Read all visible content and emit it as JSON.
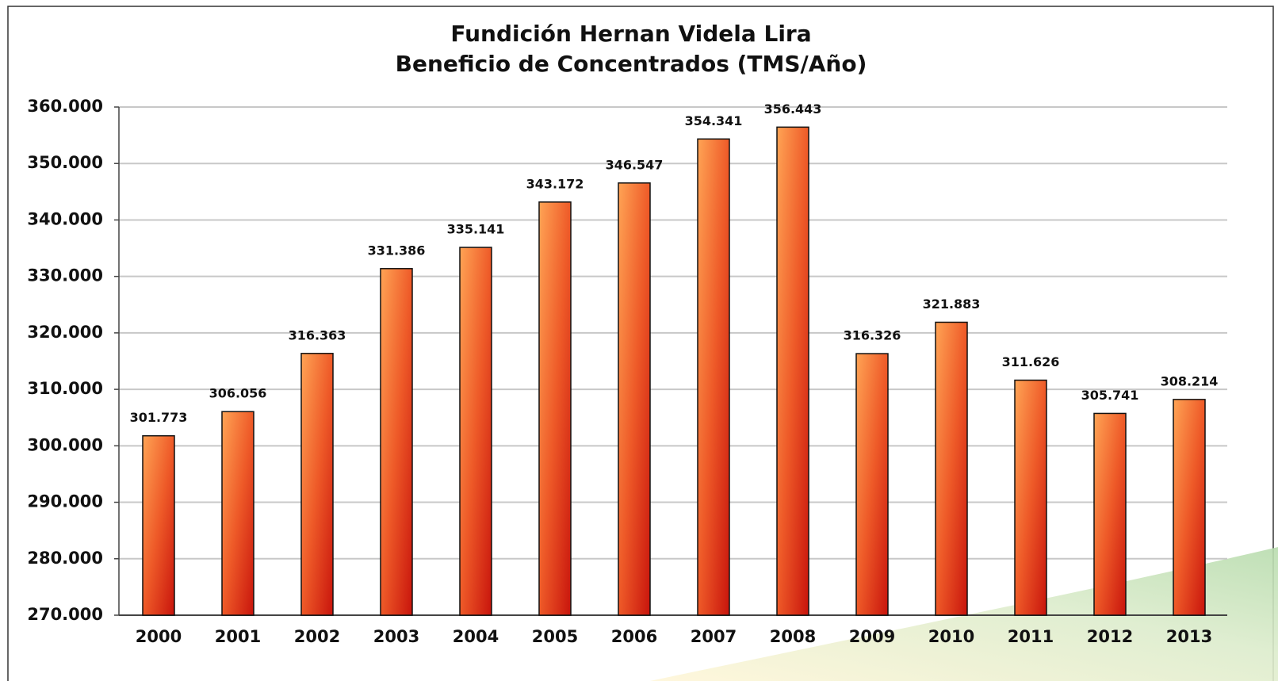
{
  "chart_data": {
    "type": "bar",
    "title": "Fundición Hernan Videla Lira",
    "subtitle": "Beneficio de Concentrados (TMS/Año)",
    "categories": [
      "2000",
      "2001",
      "2002",
      "2003",
      "2004",
      "2005",
      "2006",
      "2007",
      "2008",
      "2009",
      "2010",
      "2011",
      "2012",
      "2013"
    ],
    "values": [
      301773,
      306056,
      316363,
      331386,
      335141,
      343172,
      346547,
      354341,
      356443,
      316326,
      321883,
      311626,
      305741,
      308214
    ],
    "value_labels": [
      "301.773",
      "306.056",
      "316.363",
      "331.386",
      "335.141",
      "343.172",
      "346.547",
      "354.341",
      "356.443",
      "316.326",
      "321.883",
      "311.626",
      "305.741",
      "308.214"
    ],
    "color": "#e8461e",
    "ylim": [
      270000,
      360000
    ],
    "yticks": [
      {
        "value": 270000,
        "label": "270.000"
      },
      {
        "value": 280000,
        "label": "280.000"
      },
      {
        "value": 290000,
        "label": "290.000"
      },
      {
        "value": 300000,
        "label": "300.000"
      },
      {
        "value": 310000,
        "label": "310.000"
      },
      {
        "value": 320000,
        "label": "320.000"
      },
      {
        "value": 330000,
        "label": "330.000"
      },
      {
        "value": 340000,
        "label": "340.000"
      },
      {
        "value": 350000,
        "label": "350.000"
      },
      {
        "value": 360000,
        "label": "360.000"
      }
    ],
    "grid": true
  }
}
